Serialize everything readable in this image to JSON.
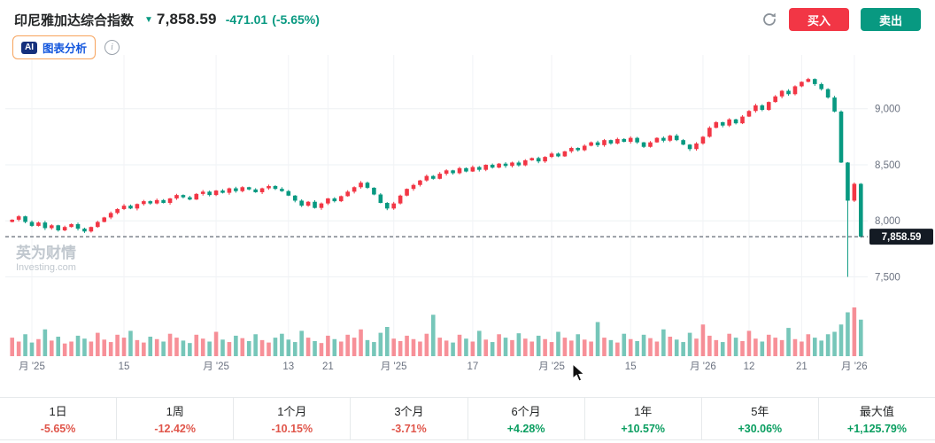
{
  "header": {
    "title": "印尼雅加达综合指数",
    "arrow": "▼",
    "price": "7,858.59",
    "change": "-471.01",
    "change_percent": "(-5.65%)",
    "buy_label": "买入",
    "sell_label": "卖出"
  },
  "toolbar": {
    "ai_chip": "AI",
    "ai_label": "图表分析",
    "info_icon": "i"
  },
  "watermark": {
    "line1": "英为财情",
    "line2": "Investing.com"
  },
  "colors": {
    "up": "#f23645",
    "down": "#089981",
    "change": "#089981",
    "neg": "#e0564b",
    "pos": "#0a9e60",
    "axis_text": "#6b7280",
    "tag_bg": "#141b24"
  },
  "chart_data": {
    "type": "candlestick",
    "title": "印尼雅加达综合指数",
    "legend_position": "none",
    "grid": true,
    "last_price": 7858.59,
    "last_price_label": "7,858.59",
    "first_open": 7990,
    "price_axis": {
      "ticks": [
        "9,000",
        "8,500",
        "8,000",
        "7,500"
      ],
      "tick_values": [
        9000,
        8500,
        8000,
        7500
      ],
      "range": [
        7330,
        9480
      ]
    },
    "x_ticks": [
      {
        "index": 3,
        "label": "月 '25"
      },
      {
        "index": 17,
        "label": "15"
      },
      {
        "index": 31,
        "label": "月 '25"
      },
      {
        "index": 42,
        "label": "13"
      },
      {
        "index": 48,
        "label": "21"
      },
      {
        "index": 58,
        "label": "月 '25"
      },
      {
        "index": 70,
        "label": "17"
      },
      {
        "index": 82,
        "label": "月 '25"
      },
      {
        "index": 94,
        "label": "15"
      },
      {
        "index": 105,
        "label": "月 '26"
      },
      {
        "index": 112,
        "label": "12"
      },
      {
        "index": 120,
        "label": "21"
      },
      {
        "index": 128,
        "label": "月 '26"
      }
    ],
    "closes": [
      8010,
      8040,
      7990,
      7955,
      7985,
      7935,
      7960,
      7915,
      7945,
      7970,
      7930,
      7905,
      7945,
      7990,
      8030,
      8070,
      8105,
      8135,
      8110,
      8150,
      8175,
      8155,
      8185,
      8160,
      8200,
      8230,
      8210,
      8190,
      8240,
      8260,
      8230,
      8270,
      8250,
      8290,
      8265,
      8300,
      8280,
      8255,
      8290,
      8310,
      8285,
      8265,
      8225,
      8180,
      8135,
      8170,
      8115,
      8155,
      8200,
      8175,
      8220,
      8260,
      8300,
      8340,
      8295,
      8235,
      8160,
      8110,
      8155,
      8225,
      8285,
      8320,
      8360,
      8400,
      8375,
      8420,
      8450,
      8425,
      8470,
      8440,
      8480,
      8455,
      8500,
      8475,
      8510,
      8490,
      8520,
      8495,
      8540,
      8560,
      8530,
      8570,
      8600,
      8575,
      8620,
      8650,
      8630,
      8670,
      8700,
      8675,
      8720,
      8690,
      8730,
      8705,
      8740,
      8700,
      8660,
      8700,
      8740,
      8715,
      8760,
      8720,
      8680,
      8640,
      8690,
      8750,
      8830,
      8880,
      8850,
      8905,
      8870,
      8930,
      8980,
      9030,
      8990,
      9060,
      9110,
      9160,
      9130,
      9200,
      9240,
      9265,
      9220,
      9175,
      9100,
      8975,
      8520,
      8180,
      8330,
      7858.59
    ],
    "volumes": [
      38,
      30,
      45,
      28,
      35,
      55,
      32,
      40,
      26,
      30,
      42,
      36,
      30,
      48,
      34,
      29,
      44,
      38,
      52,
      33,
      28,
      40,
      35,
      30,
      46,
      38,
      32,
      27,
      44,
      36,
      30,
      50,
      34,
      29,
      42,
      37,
      31,
      45,
      33,
      28,
      38,
      46,
      34,
      29,
      52,
      38,
      31,
      27,
      42,
      35,
      30,
      44,
      38,
      55,
      33,
      29,
      48,
      60,
      36,
      31,
      42,
      35,
      30,
      46,
      85,
      38,
      32,
      28,
      44,
      36,
      30,
      52,
      34,
      29,
      45,
      38,
      33,
      47,
      36,
      30,
      42,
      35,
      29,
      50,
      38,
      32,
      45,
      34,
      30,
      70,
      38,
      33,
      28,
      46,
      35,
      31,
      44,
      37,
      30,
      55,
      40,
      34,
      29,
      48,
      36,
      65,
      42,
      33,
      29,
      46,
      38,
      31,
      52,
      36,
      30,
      44,
      38,
      33,
      58,
      35,
      30,
      45,
      38,
      32,
      45,
      50,
      65,
      90,
      100,
      75
    ],
    "wick_lows": {
      "127": 7500
    }
  },
  "periods": [
    {
      "label": "1日",
      "value": "-5.65%",
      "direction": "neg"
    },
    {
      "label": "1周",
      "value": "-12.42%",
      "direction": "neg"
    },
    {
      "label": "1个月",
      "value": "-10.15%",
      "direction": "neg"
    },
    {
      "label": "3个月",
      "value": "-3.71%",
      "direction": "neg"
    },
    {
      "label": "6个月",
      "value": "+4.28%",
      "direction": "pos"
    },
    {
      "label": "1年",
      "value": "+10.57%",
      "direction": "pos"
    },
    {
      "label": "5年",
      "value": "+30.06%",
      "direction": "pos"
    },
    {
      "label": "最大值",
      "value": "+1,125.79%",
      "direction": "pos"
    }
  ]
}
